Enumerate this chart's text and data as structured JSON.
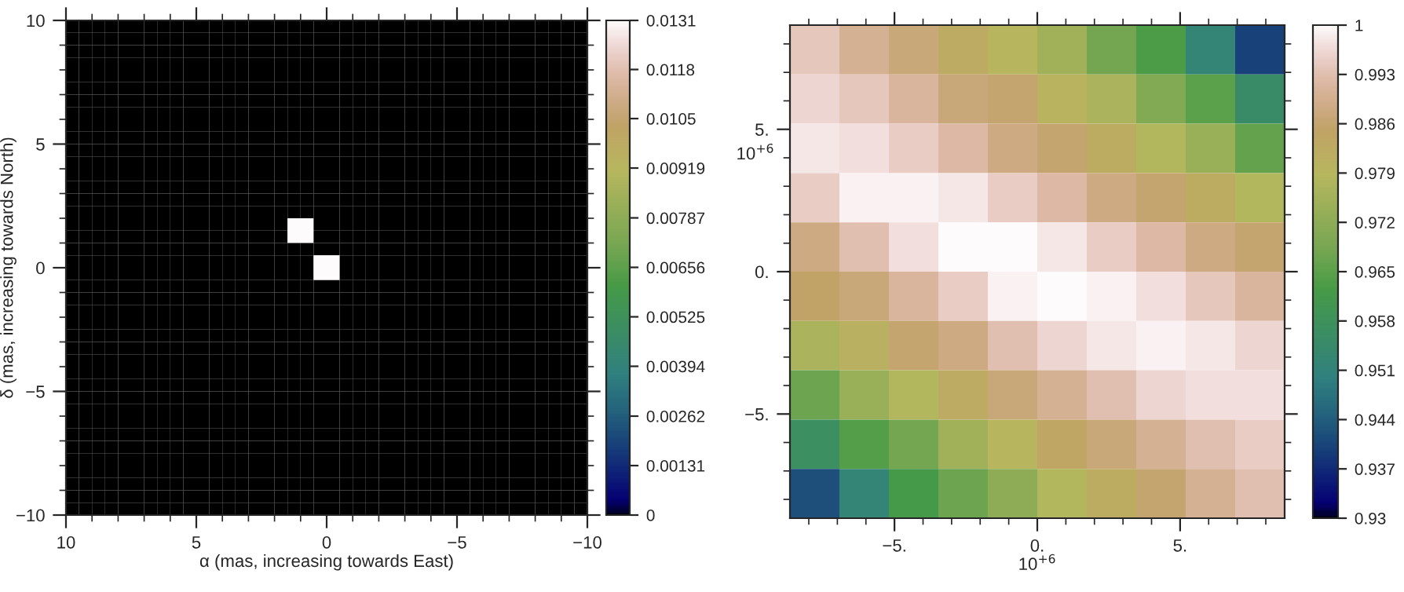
{
  "chart_data": [
    {
      "type": "heatmap",
      "xlabel": "α (mas, increasing towards East)",
      "ylabel": "δ (mas, increasing towards North)",
      "xlim": [
        10,
        -10
      ],
      "ylim": [
        -10,
        10
      ],
      "xticks": [
        10,
        5,
        0,
        {
          "value": -5,
          "label": "−5"
        },
        {
          "value": -10,
          "label": "−10"
        }
      ],
      "yticks": [
        {
          "value": -10,
          "label": "−10"
        },
        {
          "value": -5,
          "label": "−5"
        },
        0,
        5,
        10
      ],
      "clim": [
        0,
        0.0131
      ],
      "cticks": [
        0,
        0.00131,
        0.00262,
        0.00394,
        0.00525,
        0.00656,
        0.00787,
        0.00919,
        0.0105,
        0.0118,
        0.0131
      ],
      "cells": [
        [
          0,
          0,
          0,
          0,
          0,
          0,
          0,
          0,
          0,
          0,
          0,
          0,
          0,
          0,
          0,
          0,
          0,
          0,
          0,
          0,
          0,
          0,
          0,
          0,
          0,
          0,
          0,
          0,
          0,
          0,
          0,
          0,
          0,
          0,
          0,
          0,
          0,
          0,
          0,
          0
        ],
        [
          0,
          0,
          0,
          0,
          0,
          0,
          0,
          0,
          0,
          0,
          0,
          0,
          0,
          0,
          0,
          0,
          0,
          0,
          0,
          0,
          0,
          0,
          0,
          0,
          0,
          0,
          0,
          0,
          0,
          0,
          0,
          0,
          0,
          0,
          0,
          0,
          0,
          0,
          0,
          0
        ],
        [
          0,
          0,
          0,
          0,
          0,
          0,
          0,
          0,
          0,
          0,
          0,
          0,
          0,
          0,
          0,
          0,
          0,
          0,
          0,
          0,
          0,
          0,
          0,
          0,
          0,
          0,
          0,
          0,
          0,
          0,
          0,
          0,
          0,
          0,
          0,
          0,
          0,
          0,
          0,
          0
        ],
        [
          0,
          0,
          0,
          0,
          0,
          0,
          0,
          0,
          0,
          0,
          0,
          0,
          0,
          0,
          0,
          0,
          0,
          0,
          0,
          0,
          0,
          0,
          0,
          0,
          0,
          0,
          0,
          0,
          0,
          0,
          0,
          0,
          0,
          0,
          0,
          0,
          0,
          0,
          0,
          0
        ],
        [
          0,
          0,
          0,
          0,
          0,
          0,
          0,
          0,
          0,
          0,
          0,
          0,
          0,
          0,
          0,
          0,
          0,
          0,
          0,
          0,
          0,
          0,
          0,
          0,
          0,
          0,
          0,
          0,
          0,
          0,
          0,
          0,
          0,
          0,
          0,
          0,
          0,
          0,
          0,
          0
        ],
        [
          0,
          0,
          0,
          0,
          0,
          0,
          0,
          0,
          0,
          0,
          0,
          0,
          0,
          0,
          0,
          0,
          0,
          0,
          0,
          0,
          0,
          0,
          0,
          0,
          0,
          0,
          0,
          0,
          0,
          0,
          0,
          0,
          0,
          0,
          0,
          0,
          0,
          0,
          0,
          0
        ],
        [
          0,
          0,
          0,
          0,
          0,
          0,
          0,
          0,
          0,
          0,
          0,
          0,
          0,
          0,
          0,
          0,
          0,
          0,
          0,
          0,
          0,
          0,
          0,
          0,
          0,
          0,
          0,
          0,
          0,
          0,
          0,
          0,
          0,
          0,
          0,
          0,
          0,
          0,
          0,
          0
        ],
        [
          0,
          0,
          0,
          0,
          0,
          0,
          0,
          0,
          0,
          0,
          0,
          0,
          0,
          0,
          0,
          0,
          0,
          0,
          0,
          0,
          0,
          0,
          0,
          0,
          0,
          0,
          0,
          0,
          0,
          0,
          0,
          0,
          0,
          0,
          0,
          0,
          0,
          0,
          0,
          0
        ],
        [
          0,
          0,
          0,
          0,
          0,
          0,
          0,
          0,
          0,
          0,
          0,
          0,
          0,
          0,
          0,
          0,
          0,
          0,
          0,
          0,
          0,
          0,
          0,
          0,
          0,
          0,
          0,
          0,
          0,
          0,
          0,
          0,
          0,
          0,
          0,
          0,
          0,
          0,
          0,
          0
        ],
        [
          0,
          0,
          0,
          0,
          0,
          0,
          0,
          0,
          0,
          0,
          0,
          0,
          0,
          0,
          0,
          0,
          0,
          0,
          0,
          0,
          0,
          0,
          0,
          0,
          0,
          0,
          0,
          0,
          0,
          0,
          0,
          0,
          0,
          0,
          0,
          0,
          0,
          0,
          0,
          0
        ],
        [
          0,
          0,
          0,
          0,
          0,
          0,
          0,
          0,
          0,
          0,
          0,
          0,
          0,
          0,
          0,
          0,
          0,
          0,
          0,
          0,
          0,
          0,
          0,
          0,
          0,
          0,
          0,
          0,
          0,
          0,
          0,
          0,
          0,
          0,
          0,
          0,
          0,
          0,
          0,
          0
        ],
        [
          0,
          0,
          0,
          0,
          0,
          0,
          0,
          0,
          0,
          0,
          0,
          0,
          0,
          0,
          0,
          0,
          0,
          0,
          0,
          0,
          0,
          0,
          0,
          0,
          0,
          0,
          0,
          0,
          0,
          0,
          0,
          0,
          0,
          0,
          0,
          0,
          0,
          0,
          0,
          0
        ],
        [
          0,
          0,
          0,
          0,
          0,
          0,
          0,
          0,
          0,
          0,
          0,
          0,
          0,
          0,
          0,
          0,
          0,
          0,
          0,
          0,
          0,
          0,
          0,
          0,
          0,
          0,
          0,
          0,
          0,
          0,
          0,
          0,
          0,
          0,
          0,
          0,
          0,
          0,
          0,
          0
        ],
        [
          0,
          0,
          0,
          0,
          0,
          0,
          0,
          0,
          0,
          0,
          0,
          0,
          0,
          0,
          0,
          0,
          0,
          0,
          0,
          0,
          0,
          0,
          0,
          0,
          0,
          0,
          0,
          0,
          0,
          0,
          0,
          0,
          0,
          0,
          0,
          0,
          0,
          0,
          0,
          0
        ],
        [
          0,
          0,
          0,
          0,
          0,
          0,
          0,
          0,
          0,
          0,
          0,
          0,
          0,
          0,
          0,
          0,
          0,
          0,
          0,
          0,
          0,
          0,
          0,
          0,
          0,
          0,
          0,
          0,
          0,
          0,
          0,
          0,
          0,
          0,
          0,
          0,
          0,
          0,
          0,
          0
        ],
        [
          0,
          0,
          0,
          0,
          0,
          0,
          0,
          0,
          0,
          0,
          0,
          0,
          0,
          0,
          0,
          0,
          0,
          0,
          0,
          0,
          0,
          0,
          0,
          0,
          0,
          0,
          0,
          0,
          0,
          0,
          0,
          0,
          0,
          0,
          0,
          0,
          0,
          0,
          0,
          0
        ],
        [
          0,
          0,
          0,
          0,
          0,
          0,
          0,
          0,
          0,
          0,
          0,
          0,
          0,
          0,
          0,
          0,
          0,
          0.0131,
          0.0131,
          0,
          0,
          0,
          0,
          0,
          0,
          0,
          0,
          0,
          0,
          0,
          0,
          0,
          0,
          0,
          0,
          0,
          0,
          0,
          0,
          0
        ],
        [
          0,
          0,
          0,
          0,
          0,
          0,
          0,
          0,
          0,
          0,
          0,
          0,
          0,
          0,
          0,
          0,
          0,
          0.0131,
          0.0131,
          0,
          0,
          0,
          0,
          0,
          0,
          0,
          0,
          0,
          0,
          0,
          0,
          0,
          0,
          0,
          0,
          0,
          0,
          0,
          0,
          0
        ],
        [
          0,
          0,
          0,
          0,
          0,
          0,
          0,
          0,
          0,
          0,
          0,
          0,
          0,
          0,
          0,
          0,
          0,
          0,
          0,
          0,
          0,
          0,
          0,
          0,
          0,
          0,
          0,
          0,
          0,
          0,
          0,
          0,
          0,
          0,
          0,
          0,
          0,
          0,
          0,
          0
        ],
        [
          0,
          0,
          0,
          0,
          0,
          0,
          0,
          0,
          0,
          0,
          0,
          0,
          0,
          0,
          0,
          0,
          0,
          0,
          0,
          0.0131,
          0.0131,
          0,
          0,
          0,
          0,
          0,
          0,
          0,
          0,
          0,
          0,
          0,
          0,
          0,
          0,
          0,
          0,
          0,
          0,
          0
        ],
        [
          0,
          0,
          0,
          0,
          0,
          0,
          0,
          0,
          0,
          0,
          0,
          0,
          0,
          0,
          0,
          0,
          0,
          0,
          0,
          0.0131,
          0.0131,
          0,
          0,
          0,
          0,
          0,
          0,
          0,
          0,
          0,
          0,
          0,
          0,
          0,
          0,
          0,
          0,
          0,
          0,
          0
        ],
        [
          0,
          0,
          0,
          0,
          0,
          0,
          0,
          0,
          0,
          0,
          0,
          0,
          0,
          0,
          0,
          0,
          0,
          0,
          0,
          0,
          0,
          0,
          0,
          0,
          0,
          0,
          0,
          0,
          0,
          0,
          0,
          0,
          0,
          0,
          0,
          0,
          0,
          0,
          0,
          0
        ],
        [
          0,
          0,
          0,
          0,
          0,
          0,
          0,
          0,
          0,
          0,
          0,
          0,
          0,
          0,
          0,
          0,
          0,
          0,
          0,
          0,
          0,
          0,
          0,
          0,
          0,
          0,
          0,
          0,
          0,
          0,
          0,
          0,
          0,
          0,
          0,
          0,
          0,
          0,
          0,
          0
        ],
        [
          0,
          0,
          0,
          0,
          0,
          0,
          0,
          0,
          0,
          0,
          0,
          0,
          0,
          0,
          0,
          0,
          0,
          0,
          0,
          0,
          0,
          0,
          0,
          0,
          0,
          0,
          0,
          0,
          0,
          0,
          0,
          0,
          0,
          0,
          0,
          0,
          0,
          0,
          0,
          0
        ],
        [
          0,
          0,
          0,
          0,
          0,
          0,
          0,
          0,
          0,
          0,
          0,
          0,
          0,
          0,
          0,
          0,
          0,
          0,
          0,
          0,
          0,
          0,
          0,
          0,
          0,
          0,
          0,
          0,
          0,
          0,
          0,
          0,
          0,
          0,
          0,
          0,
          0,
          0,
          0,
          0
        ],
        [
          0,
          0,
          0,
          0,
          0,
          0,
          0,
          0,
          0,
          0,
          0,
          0,
          0,
          0,
          0,
          0,
          0,
          0,
          0,
          0,
          0,
          0,
          0,
          0,
          0,
          0,
          0,
          0,
          0,
          0,
          0,
          0,
          0,
          0,
          0,
          0,
          0,
          0,
          0,
          0
        ],
        [
          0,
          0,
          0,
          0,
          0,
          0,
          0,
          0,
          0,
          0,
          0,
          0,
          0,
          0,
          0,
          0,
          0,
          0,
          0,
          0,
          0,
          0,
          0,
          0,
          0,
          0,
          0,
          0,
          0,
          0,
          0,
          0,
          0,
          0,
          0,
          0,
          0,
          0,
          0,
          0
        ],
        [
          0,
          0,
          0,
          0,
          0,
          0,
          0,
          0,
          0,
          0,
          0,
          0,
          0,
          0,
          0,
          0,
          0,
          0,
          0,
          0,
          0,
          0,
          0,
          0,
          0,
          0,
          0,
          0,
          0,
          0,
          0,
          0,
          0,
          0,
          0,
          0,
          0,
          0,
          0,
          0
        ],
        [
          0,
          0,
          0,
          0,
          0,
          0,
          0,
          0,
          0,
          0,
          0,
          0,
          0,
          0,
          0,
          0,
          0,
          0,
          0,
          0,
          0,
          0,
          0,
          0,
          0,
          0,
          0,
          0,
          0,
          0,
          0,
          0,
          0,
          0,
          0,
          0,
          0,
          0,
          0,
          0
        ],
        [
          0,
          0,
          0,
          0,
          0,
          0,
          0,
          0,
          0,
          0,
          0,
          0,
          0,
          0,
          0,
          0,
          0,
          0,
          0,
          0,
          0,
          0,
          0,
          0,
          0,
          0,
          0,
          0,
          0,
          0,
          0,
          0,
          0,
          0,
          0,
          0,
          0,
          0,
          0,
          0
        ],
        [
          0,
          0,
          0,
          0,
          0,
          0,
          0,
          0,
          0,
          0,
          0,
          0,
          0,
          0,
          0,
          0,
          0,
          0,
          0,
          0,
          0,
          0,
          0,
          0,
          0,
          0,
          0,
          0,
          0,
          0,
          0,
          0,
          0,
          0,
          0,
          0,
          0,
          0,
          0,
          0
        ],
        [
          0,
          0,
          0,
          0,
          0,
          0,
          0,
          0,
          0,
          0,
          0,
          0,
          0,
          0,
          0,
          0,
          0,
          0,
          0,
          0,
          0,
          0,
          0,
          0,
          0,
          0,
          0,
          0,
          0,
          0,
          0,
          0,
          0,
          0,
          0,
          0,
          0,
          0,
          0,
          0
        ],
        [
          0,
          0,
          0,
          0,
          0,
          0,
          0,
          0,
          0,
          0,
          0,
          0,
          0,
          0,
          0,
          0,
          0,
          0,
          0,
          0,
          0,
          0,
          0,
          0,
          0,
          0,
          0,
          0,
          0,
          0,
          0,
          0,
          0,
          0,
          0,
          0,
          0,
          0,
          0,
          0
        ],
        [
          0,
          0,
          0,
          0,
          0,
          0,
          0,
          0,
          0,
          0,
          0,
          0,
          0,
          0,
          0,
          0,
          0,
          0,
          0,
          0,
          0,
          0,
          0,
          0,
          0,
          0,
          0,
          0,
          0,
          0,
          0,
          0,
          0,
          0,
          0,
          0,
          0,
          0,
          0,
          0
        ],
        [
          0,
          0,
          0,
          0,
          0,
          0,
          0,
          0,
          0,
          0,
          0,
          0,
          0,
          0,
          0,
          0,
          0,
          0,
          0,
          0,
          0,
          0,
          0,
          0,
          0,
          0,
          0,
          0,
          0,
          0,
          0,
          0,
          0,
          0,
          0,
          0,
          0,
          0,
          0,
          0
        ],
        [
          0,
          0,
          0,
          0,
          0,
          0,
          0,
          0,
          0,
          0,
          0,
          0,
          0,
          0,
          0,
          0,
          0,
          0,
          0,
          0,
          0,
          0,
          0,
          0,
          0,
          0,
          0,
          0,
          0,
          0,
          0,
          0,
          0,
          0,
          0,
          0,
          0,
          0,
          0,
          0
        ],
        [
          0,
          0,
          0,
          0,
          0,
          0,
          0,
          0,
          0,
          0,
          0,
          0,
          0,
          0,
          0,
          0,
          0,
          0,
          0,
          0,
          0,
          0,
          0,
          0,
          0,
          0,
          0,
          0,
          0,
          0,
          0,
          0,
          0,
          0,
          0,
          0,
          0,
          0,
          0,
          0
        ],
        [
          0,
          0,
          0,
          0,
          0,
          0,
          0,
          0,
          0,
          0,
          0,
          0,
          0,
          0,
          0,
          0,
          0,
          0,
          0,
          0,
          0,
          0,
          0,
          0,
          0,
          0,
          0,
          0,
          0,
          0,
          0,
          0,
          0,
          0,
          0,
          0,
          0,
          0,
          0,
          0
        ],
        [
          0,
          0,
          0,
          0,
          0,
          0,
          0,
          0,
          0,
          0,
          0,
          0,
          0,
          0,
          0,
          0,
          0,
          0,
          0,
          0,
          0,
          0,
          0,
          0,
          0,
          0,
          0,
          0,
          0,
          0,
          0,
          0,
          0,
          0,
          0,
          0,
          0,
          0,
          0,
          0
        ],
        [
          0,
          0,
          0,
          0,
          0,
          0,
          0,
          0,
          0,
          0,
          0,
          0,
          0,
          0,
          0,
          0,
          0,
          0,
          0,
          0,
          0,
          0,
          0,
          0,
          0,
          0,
          0,
          0,
          0,
          0,
          0,
          0,
          0,
          0,
          0,
          0,
          0,
          0,
          0,
          0
        ]
      ]
    },
    {
      "type": "heatmap",
      "xlabel": "10$^{+6}$",
      "ylabel": "10$^{+6}$",
      "xlim": [
        -8.66,
        8.66
      ],
      "ylim": [
        -8.66,
        8.66
      ],
      "xticks": [
        {
          "value": -5,
          "label": "−5."
        },
        {
          "value": 0,
          "label": "0."
        },
        {
          "value": 5,
          "label": "5."
        }
      ],
      "yticks": [
        {
          "value": -5,
          "label": "−5."
        },
        {
          "value": 0,
          "label": "0."
        },
        {
          "value": 5,
          "label": "5."
        }
      ],
      "clim": [
        0.93,
        1
      ],
      "cticks": [
        0.93,
        0.937,
        0.944,
        0.951,
        0.958,
        0.965,
        0.972,
        0.979,
        0.986,
        0.993,
        1
      ],
      "cells": [
        [
          0.994,
          0.99,
          0.987,
          0.983,
          0.979,
          0.975,
          0.968,
          0.963,
          0.952,
          0.94
        ],
        [
          0.996,
          0.994,
          0.991,
          0.987,
          0.986,
          0.98,
          0.977,
          0.97,
          0.965,
          0.955
        ],
        [
          0.998,
          0.997,
          0.995,
          0.992,
          0.988,
          0.986,
          0.982,
          0.978,
          0.974,
          0.966
        ],
        [
          0.995,
          0.999,
          0.999,
          0.998,
          0.995,
          0.992,
          0.988,
          0.986,
          0.982,
          0.978
        ],
        [
          0.988,
          0.993,
          0.997,
          1.0,
          1.0,
          0.998,
          0.995,
          0.992,
          0.988,
          0.986
        ],
        [
          0.985,
          0.987,
          0.991,
          0.995,
          0.999,
          1.0,
          0.999,
          0.997,
          0.994,
          0.991
        ],
        [
          0.977,
          0.981,
          0.986,
          0.988,
          0.993,
          0.996,
          0.998,
          0.999,
          0.998,
          0.996
        ],
        [
          0.967,
          0.974,
          0.978,
          0.983,
          0.987,
          0.99,
          0.993,
          0.996,
          0.997,
          0.997
        ],
        [
          0.957,
          0.964,
          0.968,
          0.975,
          0.979,
          0.984,
          0.987,
          0.99,
          0.993,
          0.995
        ],
        [
          0.942,
          0.952,
          0.962,
          0.967,
          0.972,
          0.978,
          0.982,
          0.986,
          0.99,
          0.993
        ]
      ]
    }
  ]
}
